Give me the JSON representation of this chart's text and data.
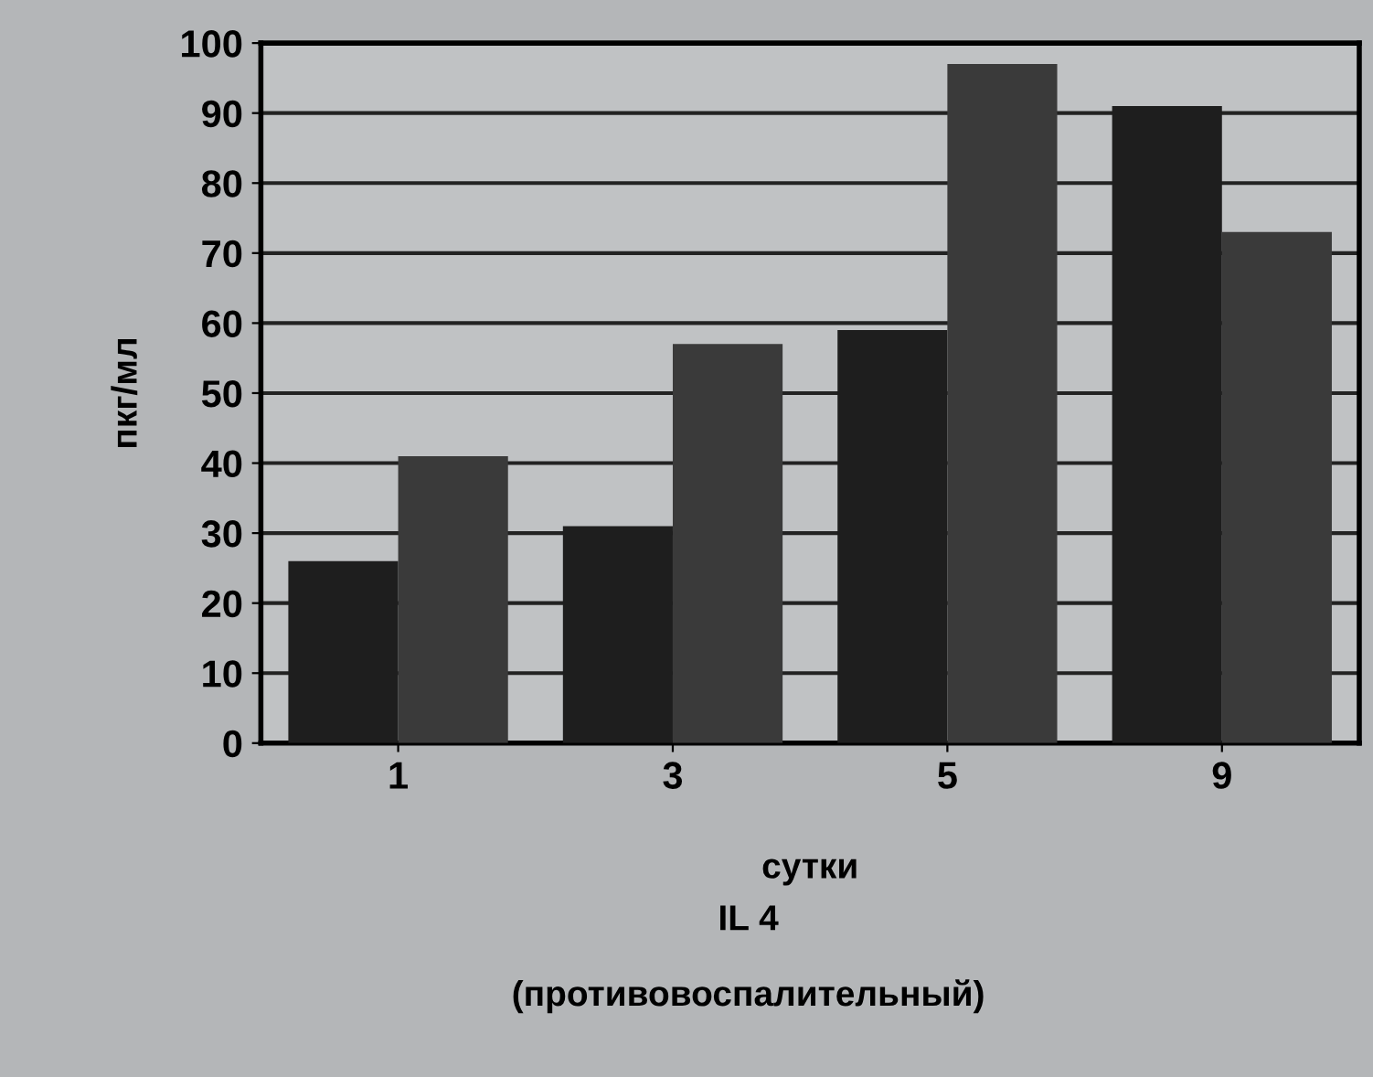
{
  "chart_data": {
    "type": "bar",
    "categories": [
      "1",
      "3",
      "5",
      "9"
    ],
    "series": [
      {
        "color": "#1e1e1e",
        "values": [
          26,
          31,
          59,
          91
        ]
      },
      {
        "color": "#3a3a3a",
        "values": [
          41,
          57,
          97,
          73
        ]
      }
    ],
    "ylim": [
      0,
      100
    ],
    "yticks": [
      0,
      10,
      20,
      30,
      40,
      50,
      60,
      70,
      80,
      90,
      100
    ],
    "grid": "y",
    "ylabel": "пкг/мл",
    "xlabel": "сутки",
    "annotations": [
      "IL 4",
      "(противовоспалительный)"
    ]
  }
}
